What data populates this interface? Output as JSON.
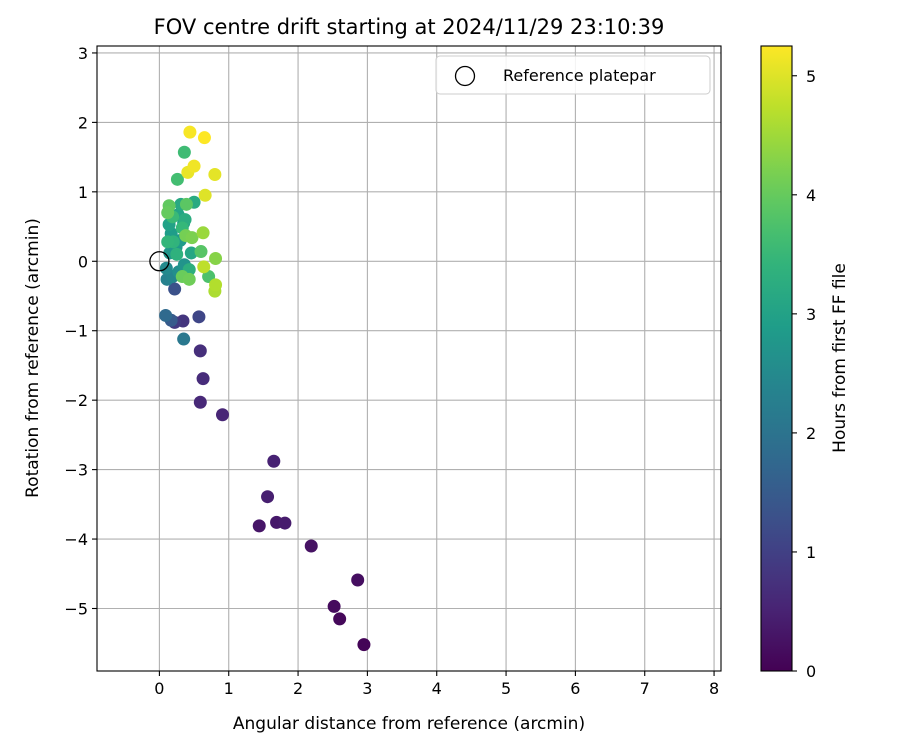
{
  "chart_data": {
    "type": "scatter",
    "title": "FOV centre drift starting at 2024/11/29 23:10:39",
    "xlabel": "Angular distance from reference (arcmin)",
    "ylabel": "Rotation from reference (arcmin)",
    "xlim": [
      -0.9,
      8.1
    ],
    "ylim": [
      -5.9,
      3.1
    ],
    "xticks": [
      0,
      1,
      2,
      3,
      4,
      5,
      6,
      7,
      8
    ],
    "yticks": [
      3,
      2,
      1,
      0,
      -1,
      -2,
      -3,
      -4,
      -5
    ],
    "grid": true,
    "legend": {
      "position": "top-right",
      "entries": [
        "Reference platepar"
      ]
    },
    "reference_point": {
      "x": 0,
      "y": 0,
      "label": "Reference platepar"
    },
    "colorbar": {
      "label": "Hours from first FF file",
      "min": 0,
      "max": 5.25,
      "ticks": [
        0,
        1,
        2,
        3,
        4,
        5
      ],
      "colormap": "viridis"
    },
    "points": [
      {
        "x": 2.95,
        "y": -5.52,
        "c": 0.05
      },
      {
        "x": 2.6,
        "y": -5.15,
        "c": 0.1
      },
      {
        "x": 2.52,
        "y": -4.97,
        "c": 0.15
      },
      {
        "x": 2.86,
        "y": -4.59,
        "c": 0.2
      },
      {
        "x": 2.19,
        "y": -4.1,
        "c": 0.25
      },
      {
        "x": 1.44,
        "y": -3.81,
        "c": 0.3
      },
      {
        "x": 1.69,
        "y": -3.76,
        "c": 0.35
      },
      {
        "x": 1.81,
        "y": -3.77,
        "c": 0.4
      },
      {
        "x": 1.56,
        "y": -3.39,
        "c": 0.45
      },
      {
        "x": 1.65,
        "y": -2.88,
        "c": 0.5
      },
      {
        "x": 0.91,
        "y": -2.21,
        "c": 0.55
      },
      {
        "x": 0.59,
        "y": -2.03,
        "c": 0.6
      },
      {
        "x": 0.63,
        "y": -1.69,
        "c": 0.65
      },
      {
        "x": 0.59,
        "y": -1.29,
        "c": 0.7
      },
      {
        "x": 0.34,
        "y": -0.86,
        "c": 0.8
      },
      {
        "x": 0.22,
        "y": -0.88,
        "c": 0.9
      },
      {
        "x": 0.57,
        "y": -0.8,
        "c": 1.1
      },
      {
        "x": 0.22,
        "y": -0.4,
        "c": 1.3
      },
      {
        "x": 0.17,
        "y": -0.85,
        "c": 1.5
      },
      {
        "x": 0.09,
        "y": -0.78,
        "c": 1.8
      },
      {
        "x": 0.35,
        "y": -1.12,
        "c": 2.1
      },
      {
        "x": 0.11,
        "y": -0.26,
        "c": 2.3
      },
      {
        "x": 0.19,
        "y": -0.22,
        "c": 2.4
      },
      {
        "x": 0.1,
        "y": -0.1,
        "c": 2.5
      },
      {
        "x": 0.28,
        "y": -0.15,
        "c": 2.6
      },
      {
        "x": 0.36,
        "y": -0.05,
        "c": 2.7
      },
      {
        "x": 0.15,
        "y": 0.12,
        "c": 2.75
      },
      {
        "x": 0.24,
        "y": 0.2,
        "c": 2.8
      },
      {
        "x": 0.3,
        "y": 0.3,
        "c": 2.85
      },
      {
        "x": 0.17,
        "y": 0.4,
        "c": 2.9
      },
      {
        "x": 0.35,
        "y": 0.55,
        "c": 2.95
      },
      {
        "x": 0.14,
        "y": 0.53,
        "c": 3.0
      },
      {
        "x": 0.27,
        "y": 0.67,
        "c": 3.05
      },
      {
        "x": 0.46,
        "y": 0.12,
        "c": 3.1
      },
      {
        "x": 0.31,
        "y": 0.82,
        "c": 3.15
      },
      {
        "x": 0.5,
        "y": 0.85,
        "c": 3.2
      },
      {
        "x": 0.37,
        "y": 0.6,
        "c": 3.25
      },
      {
        "x": 0.43,
        "y": -0.12,
        "c": 3.3
      },
      {
        "x": 0.25,
        "y": 0.1,
        "c": 3.35
      },
      {
        "x": 0.2,
        "y": 0.28,
        "c": 3.4
      },
      {
        "x": 0.12,
        "y": 0.28,
        "c": 3.45
      },
      {
        "x": 0.33,
        "y": 0.48,
        "c": 3.5
      },
      {
        "x": 0.19,
        "y": 0.64,
        "c": 3.55
      },
      {
        "x": 0.36,
        "y": 1.57,
        "c": 3.6
      },
      {
        "x": 0.26,
        "y": 1.18,
        "c": 3.65
      },
      {
        "x": 0.71,
        "y": -0.22,
        "c": 3.75
      },
      {
        "x": 0.6,
        "y": 0.14,
        "c": 3.85
      },
      {
        "x": 0.39,
        "y": 0.82,
        "c": 3.9
      },
      {
        "x": 0.14,
        "y": 0.8,
        "c": 3.95
      },
      {
        "x": 0.12,
        "y": 0.7,
        "c": 4.0
      },
      {
        "x": 0.33,
        "y": -0.22,
        "c": 4.05
      },
      {
        "x": 0.43,
        "y": -0.26,
        "c": 4.1
      },
      {
        "x": 0.38,
        "y": 0.37,
        "c": 4.15
      },
      {
        "x": 0.47,
        "y": 0.34,
        "c": 4.2
      },
      {
        "x": 0.81,
        "y": 0.04,
        "c": 4.3
      },
      {
        "x": 0.63,
        "y": 0.41,
        "c": 4.45
      },
      {
        "x": 0.8,
        "y": -0.43,
        "c": 4.6
      },
      {
        "x": 0.81,
        "y": -0.34,
        "c": 4.65
      },
      {
        "x": 0.64,
        "y": -0.08,
        "c": 4.75
      },
      {
        "x": 0.66,
        "y": 0.95,
        "c": 5.0
      },
      {
        "x": 0.8,
        "y": 1.25,
        "c": 5.05
      },
      {
        "x": 0.41,
        "y": 1.28,
        "c": 5.1
      },
      {
        "x": 0.5,
        "y": 1.37,
        "c": 5.15
      },
      {
        "x": 0.44,
        "y": 1.86,
        "c": 5.2
      },
      {
        "x": 0.65,
        "y": 1.78,
        "c": 5.25
      }
    ]
  }
}
